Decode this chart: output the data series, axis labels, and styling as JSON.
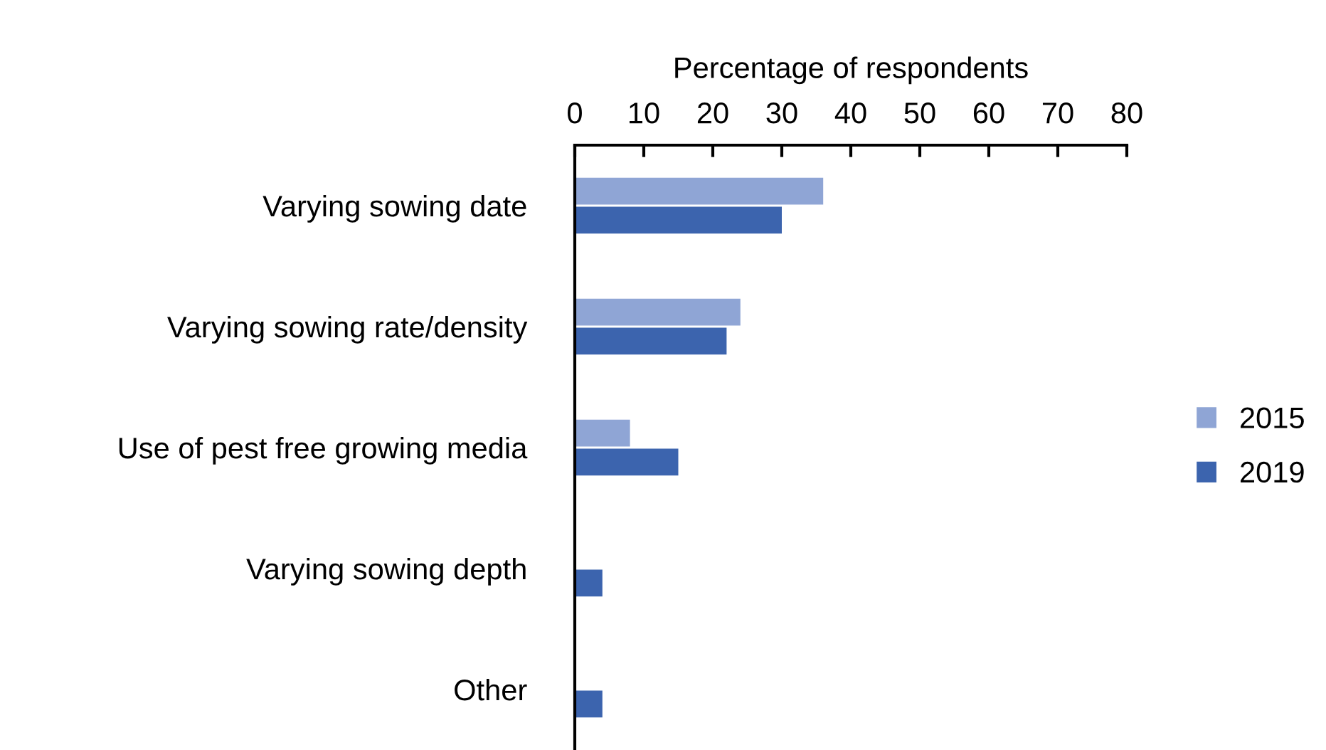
{
  "chart_data": {
    "type": "bar",
    "orientation": "horizontal",
    "xlabel": "Percentage of respondents",
    "categories": [
      "Varying sowing date",
      "Varying sowing rate/density",
      "Use of pest free growing media",
      "Varying sowing depth",
      "Other"
    ],
    "series": [
      {
        "name": "2015",
        "color": "#8fa5d5",
        "values": [
          36,
          24,
          8,
          null,
          null
        ]
      },
      {
        "name": "2019",
        "color": "#3c64ae",
        "values": [
          30,
          22,
          15,
          4,
          4
        ]
      }
    ],
    "xlim": [
      0,
      80
    ],
    "xticks": [
      0,
      10,
      20,
      30,
      40,
      50,
      60,
      70,
      80
    ],
    "grid": false,
    "legend": "right"
  }
}
